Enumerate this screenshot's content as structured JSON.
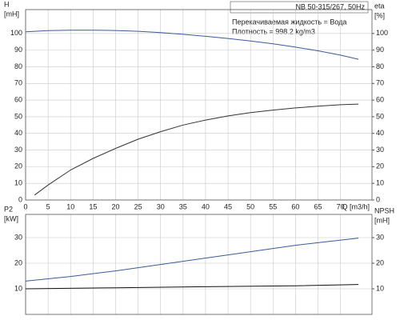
{
  "chart_data": [
    {
      "type": "line",
      "annotations": [
        "NB 50-315/267, 50Hz",
        "Перекачиваемая жидкость = Вода",
        "Плотность = 998.2 kg/m3"
      ],
      "y_label": [
        "H",
        "[mH]"
      ],
      "y2_label": [
        "eta",
        "[%]"
      ],
      "x_label": "Q [m3/h]",
      "xlim": [
        0,
        77
      ],
      "xticks": [
        0,
        5,
        10,
        15,
        20,
        25,
        30,
        35,
        40,
        45,
        50,
        55,
        60,
        65,
        70
      ],
      "ylim": [
        0,
        110
      ],
      "yticks": [
        0,
        10,
        20,
        30,
        40,
        50,
        60,
        70,
        80,
        90,
        100
      ],
      "y2lim": [
        0,
        110
      ],
      "y2ticks": [
        0,
        10,
        20,
        30,
        40,
        50,
        60,
        70,
        80,
        90,
        100
      ],
      "grid": true,
      "series": [
        {
          "color": "#3a5a9a",
          "axis": "y",
          "x": [
            0,
            5,
            10,
            15,
            20,
            25,
            30,
            35,
            40,
            45,
            50,
            55,
            60,
            65,
            70,
            74
          ],
          "values": [
            101,
            101.7,
            102,
            102,
            101.8,
            101.3,
            100.5,
            99.5,
            98.3,
            97,
            95.5,
            93.8,
            91.8,
            89.6,
            87,
            84.5
          ]
        },
        {
          "color": "#333333",
          "axis": "y2",
          "x": [
            2,
            5,
            10,
            15,
            20,
            25,
            30,
            35,
            40,
            45,
            50,
            55,
            60,
            65,
            70,
            74
          ],
          "values": [
            3,
            9,
            18,
            25,
            31,
            36.5,
            41,
            45,
            48,
            50.5,
            52.5,
            54,
            55.3,
            56.3,
            57.2,
            57.6
          ]
        }
      ]
    },
    {
      "type": "line",
      "y_label": [
        "P2",
        "[kW]"
      ],
      "y2_label": [
        "NPSH",
        "[mH]"
      ],
      "xlim": [
        0,
        77
      ],
      "ylim": [
        0,
        40
      ],
      "yticks": [
        10,
        20,
        30
      ],
      "y2lim": [
        0,
        40
      ],
      "y2ticks": [
        10,
        20,
        30
      ],
      "grid": true,
      "series": [
        {
          "color": "#3a5a9a",
          "axis": "y",
          "x": [
            0,
            10,
            20,
            30,
            40,
            50,
            60,
            74
          ],
          "values": [
            13,
            14.8,
            17,
            19.5,
            22,
            24.5,
            27,
            29.8
          ]
        },
        {
          "color": "#111111",
          "axis": "y2",
          "x": [
            0,
            20,
            40,
            60,
            74
          ],
          "values": [
            10,
            10.4,
            10.8,
            11.2,
            11.7
          ]
        }
      ]
    }
  ]
}
